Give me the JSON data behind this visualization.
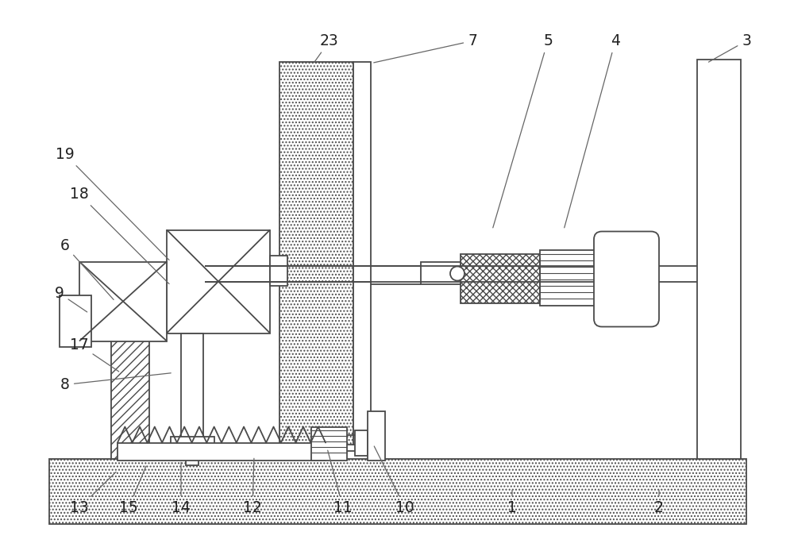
{
  "bg": "#ffffff",
  "lc": "#4a4a4a",
  "lw": 1.3,
  "fig_w": 10.0,
  "fig_h": 6.99,
  "dpi": 100,
  "annotations": [
    [
      "23",
      415,
      32,
      395,
      60
    ],
    [
      "7",
      595,
      32,
      468,
      60
    ],
    [
      "5",
      690,
      32,
      620,
      270
    ],
    [
      "4",
      775,
      32,
      710,
      270
    ],
    [
      "3",
      940,
      32,
      890,
      60
    ],
    [
      "19",
      82,
      175,
      215,
      310
    ],
    [
      "18",
      100,
      225,
      215,
      340
    ],
    [
      "6",
      82,
      290,
      145,
      360
    ],
    [
      "9",
      75,
      350,
      112,
      375
    ],
    [
      "17",
      100,
      415,
      152,
      450
    ],
    [
      "8",
      82,
      465,
      218,
      450
    ],
    [
      "13",
      100,
      620,
      148,
      573
    ],
    [
      "15",
      162,
      620,
      185,
      565
    ],
    [
      "14",
      228,
      620,
      228,
      560
    ],
    [
      "12",
      318,
      620,
      320,
      555
    ],
    [
      "11",
      432,
      620,
      412,
      545
    ],
    [
      "10",
      510,
      620,
      470,
      540
    ],
    [
      "1",
      645,
      620,
      645,
      595
    ],
    [
      "2",
      830,
      620,
      830,
      595
    ]
  ]
}
